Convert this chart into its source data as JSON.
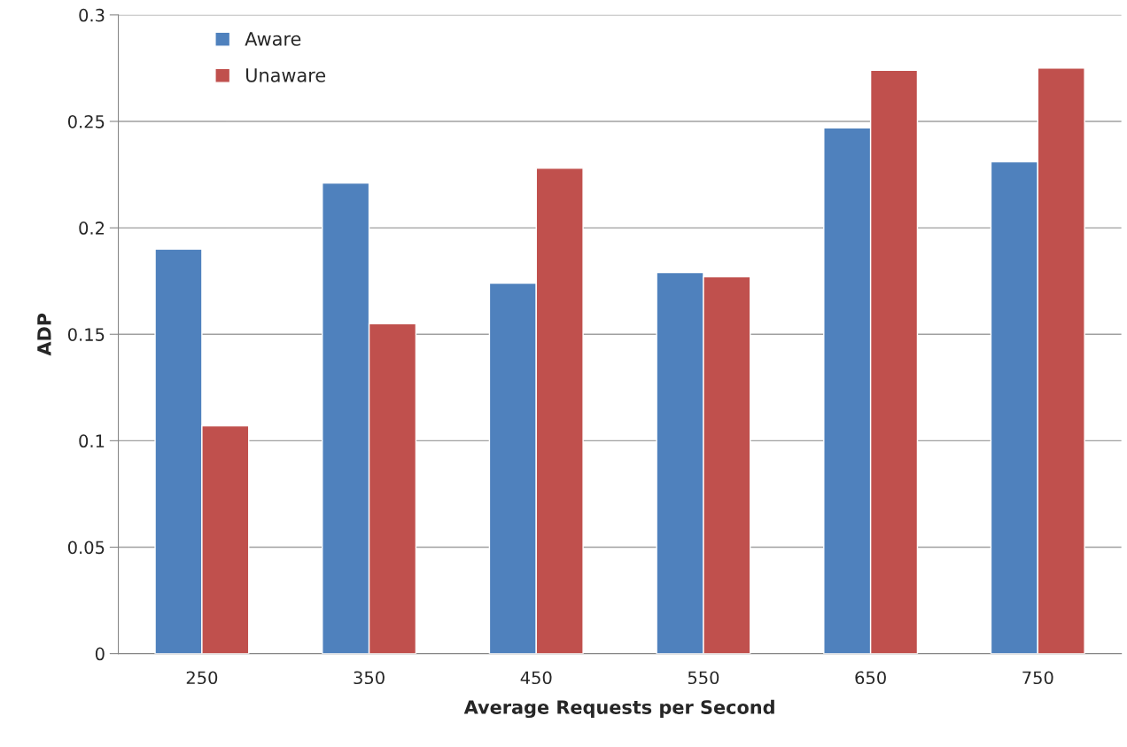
{
  "chart_data": {
    "type": "bar",
    "xlabel": "Average Requests per Second",
    "ylabel": "ADP",
    "categories": [
      "250",
      "350",
      "450",
      "550",
      "650",
      "750"
    ],
    "series": [
      {
        "name": "Aware",
        "color": "#4f81bd",
        "values": [
          0.19,
          0.221,
          0.174,
          0.179,
          0.247,
          0.231
        ]
      },
      {
        "name": "Unaware",
        "color": "#c0504d",
        "values": [
          0.107,
          0.155,
          0.228,
          0.177,
          0.274,
          0.275
        ]
      }
    ],
    "ylim": [
      0,
      0.3
    ],
    "yticks": [
      {
        "value": 0,
        "label": "0"
      },
      0.05,
      0.1,
      0.15,
      0.2,
      0.25,
      0.3
    ],
    "grid": "y",
    "legend": "top left"
  }
}
